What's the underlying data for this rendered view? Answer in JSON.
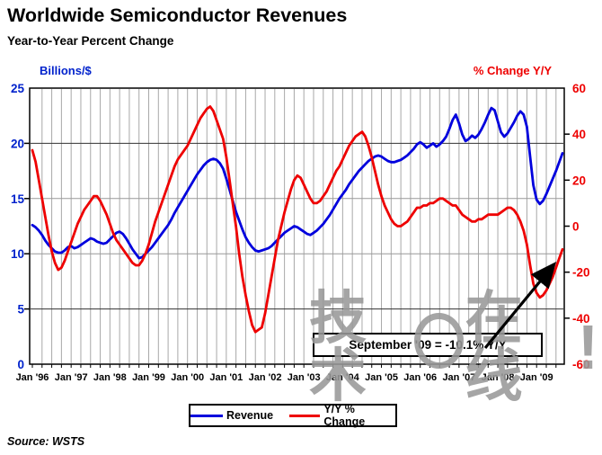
{
  "header": {
    "title": "Worldwide Semiconductor Revenues",
    "subtitle": "Year-to-Year Percent Change"
  },
  "source": "Source: WSTS",
  "annotation": {
    "label": "September '09 = -10.1% Y/Y"
  },
  "watermark": {
    "part1": "技术",
    "part2": "在线",
    "bang": "!"
  },
  "legend": {
    "items": [
      {
        "label": "Revenue",
        "color": "#0000dd"
      },
      {
        "label": "Y/Y % Change",
        "color": "#ee0000"
      }
    ]
  },
  "colors": {
    "revenue_line": "#0000dd",
    "yoy_line": "#ee0000",
    "left_axis_text": "#0022cc",
    "right_axis_text": "#ee0000",
    "grid_minor": "#a8a8a8",
    "grid_dark": "#333333",
    "watermark_gray": "#999999"
  },
  "chart_data": {
    "type": "line",
    "title": "Worldwide Semiconductor Revenues",
    "subtitle": "Year-to-Year Percent Change",
    "x_interval": "monthly",
    "x_start": "Jan 1996",
    "x_end": "Sep 2009",
    "x_tick_labels": [
      "Jan '96",
      "Jan '97",
      "Jan '98",
      "Jan '99",
      "Jan '00",
      "Jan '01",
      "Jan '02",
      "Jan '03",
      "Jan '04",
      "Jan '05",
      "Jan '06",
      "Jan '07",
      "Jan '08",
      "Jan '09"
    ],
    "grid": "quarterly vertical gray lines; horizontal lines at left-axis ticks",
    "legend_position": "bottom-center",
    "left_axis": {
      "label": "Billions/$",
      "range": [
        0,
        25
      ],
      "ticks": [
        25,
        20,
        15,
        10,
        5,
        0
      ]
    },
    "right_axis": {
      "label": "% Change Y/Y",
      "range": [
        -60,
        60
      ],
      "ticks": [
        60,
        40,
        20,
        0,
        -20,
        -40,
        -60
      ]
    },
    "annotation": {
      "text": "September '09 = -10.1% Y/Y",
      "arrow_points_to": "end of Y/Y % Change line (Sep '09)"
    },
    "series": [
      {
        "name": "Revenue",
        "axis": "left",
        "units": "billions of dollars per month",
        "color": "#0000dd",
        "values": [
          12.6,
          12.4,
          12.1,
          11.7,
          11.2,
          10.8,
          10.5,
          10.2,
          10.1,
          10.1,
          10.3,
          10.6,
          10.7,
          10.5,
          10.6,
          10.8,
          11.0,
          11.2,
          11.4,
          11.3,
          11.1,
          11.0,
          10.9,
          11.0,
          11.3,
          11.6,
          11.9,
          12.0,
          11.8,
          11.4,
          10.9,
          10.4,
          10.0,
          9.6,
          9.7,
          10.0,
          10.3,
          10.6,
          11.0,
          11.4,
          11.8,
          12.2,
          12.6,
          13.1,
          13.7,
          14.2,
          14.7,
          15.2,
          15.7,
          16.2,
          16.7,
          17.2,
          17.6,
          18.0,
          18.3,
          18.5,
          18.6,
          18.5,
          18.2,
          17.7,
          16.8,
          15.8,
          14.8,
          13.8,
          13.0,
          12.2,
          11.5,
          11.0,
          10.6,
          10.3,
          10.2,
          10.3,
          10.4,
          10.5,
          10.7,
          11.0,
          11.3,
          11.6,
          11.9,
          12.1,
          12.3,
          12.5,
          12.4,
          12.2,
          12.0,
          11.8,
          11.7,
          11.9,
          12.1,
          12.4,
          12.7,
          13.1,
          13.5,
          14.0,
          14.5,
          15.0,
          15.4,
          15.8,
          16.3,
          16.7,
          17.1,
          17.5,
          17.8,
          18.1,
          18.4,
          18.6,
          18.8,
          18.9,
          18.8,
          18.6,
          18.4,
          18.3,
          18.3,
          18.4,
          18.5,
          18.7,
          18.9,
          19.2,
          19.5,
          19.9,
          20.1,
          19.9,
          19.6,
          19.8,
          20.0,
          19.7,
          19.9,
          20.2,
          20.6,
          21.3,
          22.1,
          22.6,
          21.8,
          20.8,
          20.2,
          20.4,
          20.7,
          20.5,
          20.8,
          21.3,
          21.9,
          22.6,
          23.2,
          23.0,
          22.0,
          21.0,
          20.6,
          20.9,
          21.4,
          21.9,
          22.5,
          22.9,
          22.6,
          21.5,
          18.8,
          16.2,
          14.9,
          14.5,
          14.8,
          15.4,
          16.1,
          16.8,
          17.5,
          18.3,
          19.1
        ]
      },
      {
        "name": "Y/Y % Change",
        "axis": "right",
        "units": "percent",
        "color": "#ee0000",
        "values": [
          33,
          28,
          20,
          12,
          4,
          -4,
          -11,
          -16,
          -19,
          -18,
          -15,
          -11,
          -7,
          -3,
          1,
          4,
          7,
          9,
          11,
          13,
          13,
          11,
          8,
          5,
          1,
          -3,
          -6,
          -8,
          -10,
          -12,
          -14,
          -16,
          -17,
          -17,
          -15,
          -12,
          -8,
          -3,
          2,
          6,
          10,
          14,
          18,
          22,
          26,
          29,
          31,
          33,
          35,
          38,
          41,
          44,
          47,
          49,
          51,
          52,
          50,
          46,
          42,
          38,
          30,
          20,
          10,
          0,
          -12,
          -22,
          -30,
          -37,
          -43,
          -46,
          -45,
          -44,
          -38,
          -30,
          -22,
          -14,
          -6,
          0,
          6,
          11,
          16,
          20,
          22,
          21,
          18,
          15,
          12,
          10,
          10,
          11,
          13,
          15,
          18,
          21,
          24,
          26,
          29,
          32,
          35,
          37,
          39,
          40,
          41,
          39,
          35,
          30,
          24,
          18,
          13,
          9,
          6,
          3,
          1,
          0,
          0,
          1,
          2,
          4,
          6,
          8,
          8,
          9,
          9,
          10,
          10,
          11,
          12,
          12,
          11,
          10,
          9,
          9,
          7,
          5,
          4,
          3,
          2,
          2,
          3,
          3,
          4,
          5,
          5,
          5,
          5,
          6,
          7,
          8,
          8,
          7,
          5,
          2,
          -2,
          -8,
          -17,
          -25,
          -29,
          -31,
          -30,
          -28,
          -25,
          -22,
          -18,
          -14,
          -10.1
        ]
      }
    ]
  }
}
